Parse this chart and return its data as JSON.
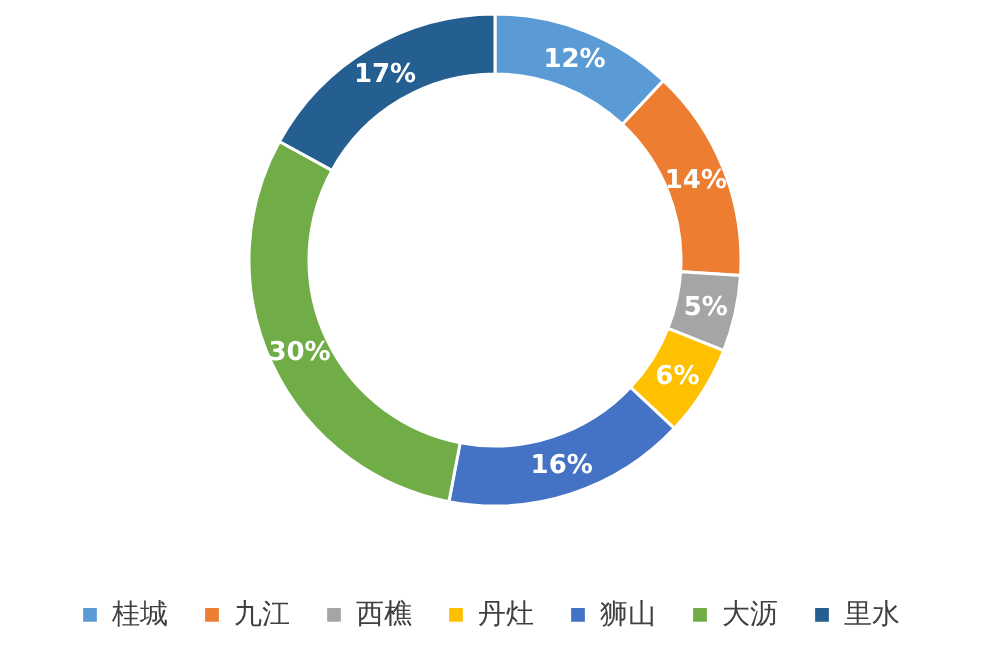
{
  "chart_data": {
    "type": "donut",
    "categories": [
      "桂城",
      "九江",
      "西樵",
      "丹灶",
      "狮山",
      "大沥",
      "里水"
    ],
    "values": [
      12,
      14,
      5,
      6,
      16,
      30,
      17
    ],
    "colors": [
      "#5b9bd5",
      "#ed7d31",
      "#a5a5a5",
      "#ffc000",
      "#4472c4",
      "#70ad47",
      "#255e91"
    ],
    "value_labels": [
      "12%",
      "14%",
      "5%",
      "6%",
      "16%",
      "30%",
      "17%"
    ],
    "legend": "bottom"
  }
}
